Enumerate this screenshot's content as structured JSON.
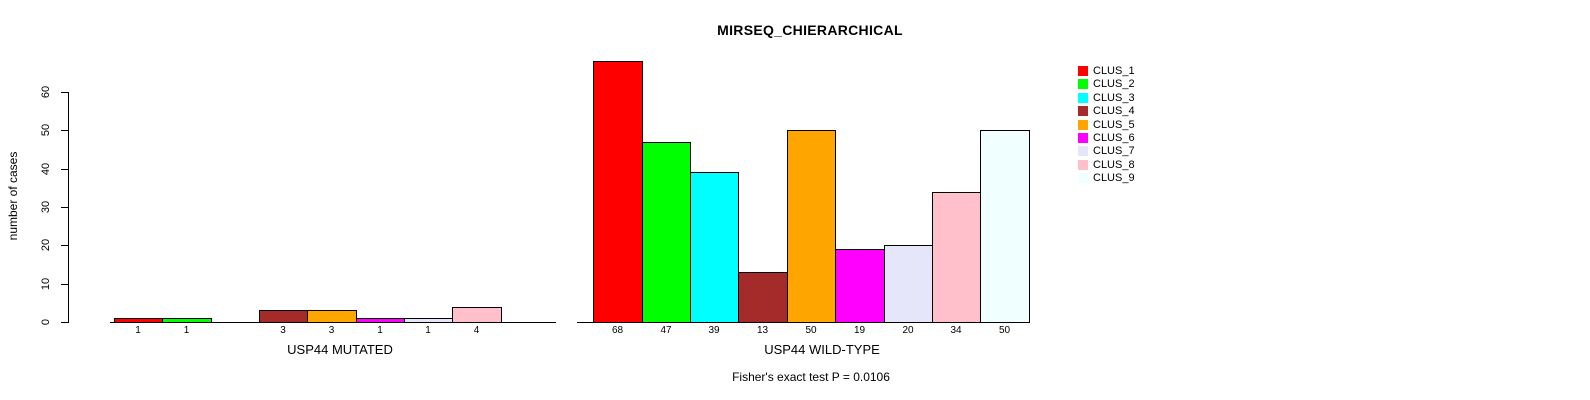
{
  "chart_data": {
    "type": "bar",
    "title": "MIRSEQ_CHIERARCHICAL",
    "ylabel": "number of cases",
    "yticks": [
      0,
      10,
      20,
      30,
      40,
      50,
      60
    ],
    "ylim": [
      0,
      68
    ],
    "grid": false,
    "legend_position": "right",
    "categories": [
      "CLUS_1",
      "CLUS_2",
      "CLUS_3",
      "CLUS_4",
      "CLUS_5",
      "CLUS_6",
      "CLUS_7",
      "CLUS_8",
      "CLUS_9"
    ],
    "colors": [
      "#FF0000",
      "#00FF00",
      "#00FFFF",
      "#A52A2A",
      "#FFA500",
      "#FF00FF",
      "#E6E6FA",
      "#FFC0CB",
      "#F0FFFF"
    ],
    "series": [
      {
        "name": "USP44 MUTATED",
        "values": [
          1,
          1,
          0,
          3,
          3,
          1,
          1,
          4,
          0
        ]
      },
      {
        "name": "USP44 WILD-TYPE",
        "values": [
          68,
          47,
          39,
          13,
          50,
          19,
          20,
          34,
          50
        ]
      }
    ],
    "bar_value_labels_shown": true,
    "zero_bars_have_no_label": true,
    "annotation": "Fisher's exact test P = 0.0106",
    "axis_color": "#000000",
    "background_color": "#FFFFFF"
  }
}
